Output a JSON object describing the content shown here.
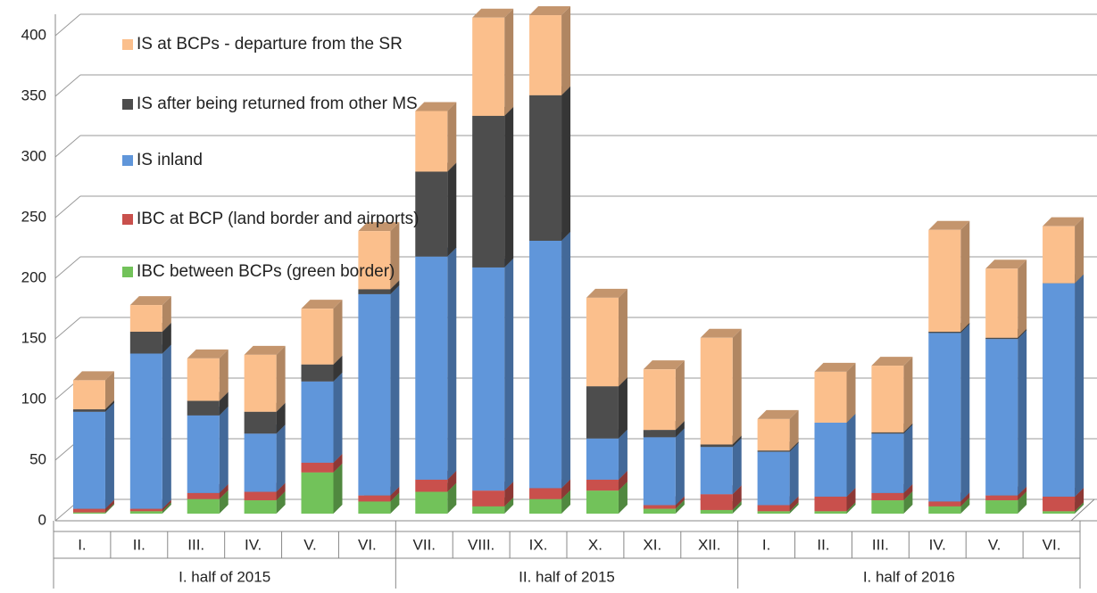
{
  "chart_data": {
    "type": "bar3d_stacked",
    "category_groups": [
      {
        "name": "I. half of 2015",
        "categories": [
          "I.",
          "II.",
          "III.",
          "IV.",
          "V.",
          "VI."
        ]
      },
      {
        "name": "II. half of 2015",
        "categories": [
          "VII.",
          "VIII.",
          "IX.",
          "X.",
          "XI.",
          "XII."
        ]
      },
      {
        "name": "I. half of 2016",
        "categories": [
          "I.",
          "II.",
          "III.",
          "IV.",
          "V.",
          "VI."
        ]
      }
    ],
    "series": [
      {
        "name": "IBC between BCPs (green border)",
        "color": "#72c25a",
        "values": [
          1,
          2,
          12,
          11,
          34,
          10,
          18,
          6,
          12,
          19,
          4,
          3,
          2,
          2,
          11,
          6,
          11,
          2
        ]
      },
      {
        "name": "IBC at BCP (land border and airports)",
        "color": "#c9504c",
        "values": [
          3,
          2,
          5,
          7,
          8,
          5,
          10,
          13,
          9,
          9,
          3,
          13,
          5,
          12,
          6,
          4,
          4,
          12
        ]
      },
      {
        "name": "IS inland",
        "color": "#6096da",
        "values": [
          80,
          128,
          64,
          48,
          67,
          166,
          184,
          184,
          204,
          34,
          56,
          39,
          44,
          61,
          49,
          139,
          129,
          176
        ]
      },
      {
        "name": "IS after being returned from other MS",
        "color": "#4d4d4d",
        "values": [
          2,
          18,
          12,
          18,
          14,
          4,
          70,
          125,
          120,
          43,
          6,
          2,
          1,
          0,
          1,
          1,
          1,
          0
        ]
      },
      {
        "name": "IS at BCPs - departure from the SR",
        "color": "#fbbf8c",
        "values": [
          24,
          22,
          35,
          47,
          46,
          48,
          50,
          81,
          66,
          73,
          50,
          88,
          26,
          42,
          55,
          84,
          57,
          47
        ]
      }
    ],
    "ylim": [
      0,
      400
    ],
    "yticks": [
      0,
      50,
      100,
      150,
      200,
      250,
      300,
      350,
      400
    ],
    "grid": true
  }
}
